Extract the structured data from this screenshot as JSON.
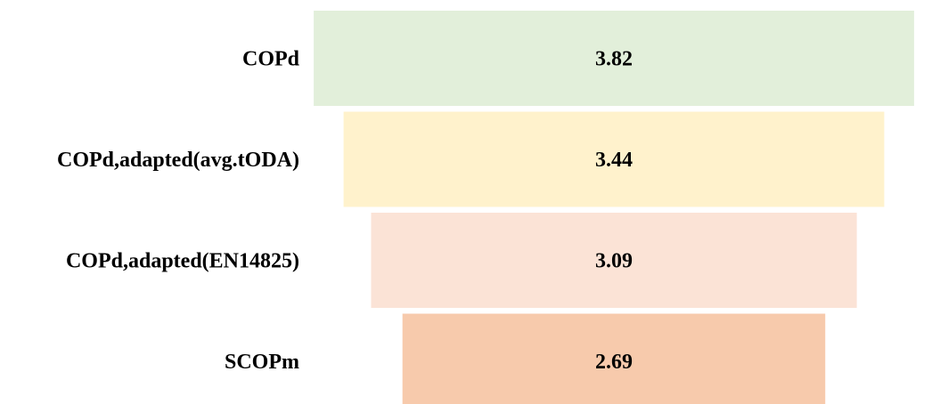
{
  "chart_data": {
    "type": "bar",
    "subtype": "funnel",
    "categories": [
      "COPd",
      "COPd,adapted(avg.tODA)",
      "COPd,adapted(EN14825)",
      "SCOPm"
    ],
    "values": [
      3.82,
      3.44,
      3.09,
      2.69
    ],
    "value_labels": [
      "3.82",
      "3.44",
      "3.09",
      "2.69"
    ],
    "colors": [
      "#e2efda",
      "#fff2cc",
      "#fbe3d6",
      "#f7caac"
    ],
    "title": "",
    "xlabel": "",
    "ylabel": "",
    "legend": "none",
    "grid": false
  }
}
